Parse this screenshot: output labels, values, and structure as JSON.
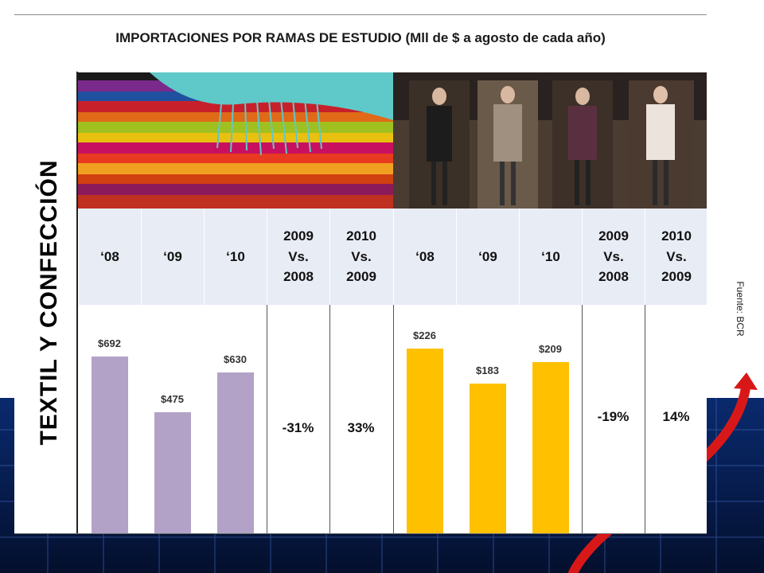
{
  "title": "IMPORTACIONES POR RAMAS DE ESTUDIO (Mll de $ a agosto de cada año)",
  "side_label": "TEXTIL Y CONFECCIÓN",
  "source": "Fuente: BCR",
  "headers": [
    "‘08",
    "‘09",
    "‘10",
    "2009\nVs.\n2008",
    "2010\nVs.\n2009",
    "‘08",
    "‘09",
    "‘10",
    "2009\nVs.\n2008",
    "2010\nVs.\n2009"
  ],
  "colors": {
    "textil": "#b3a2c7",
    "confeccion": "#ffc000",
    "arrow": "#e02020",
    "header_bg": "#e8ecf5"
  },
  "chart_data": [
    {
      "type": "bar",
      "categories": [
        "‘08",
        "‘09",
        "‘10"
      ],
      "values": [
        692,
        475,
        630
      ],
      "value_labels": [
        "$692",
        "$475",
        "$630"
      ],
      "changes": [
        "-31%",
        "33%"
      ],
      "ylim": [
        0,
        800
      ]
    },
    {
      "type": "bar",
      "categories": [
        "‘08",
        "‘09",
        "‘10"
      ],
      "values": [
        226,
        183,
        209
      ],
      "value_labels": [
        "$226",
        "$183",
        "$209"
      ],
      "changes": [
        "-19%",
        "14%"
      ],
      "ylim": [
        0,
        242
      ]
    }
  ]
}
